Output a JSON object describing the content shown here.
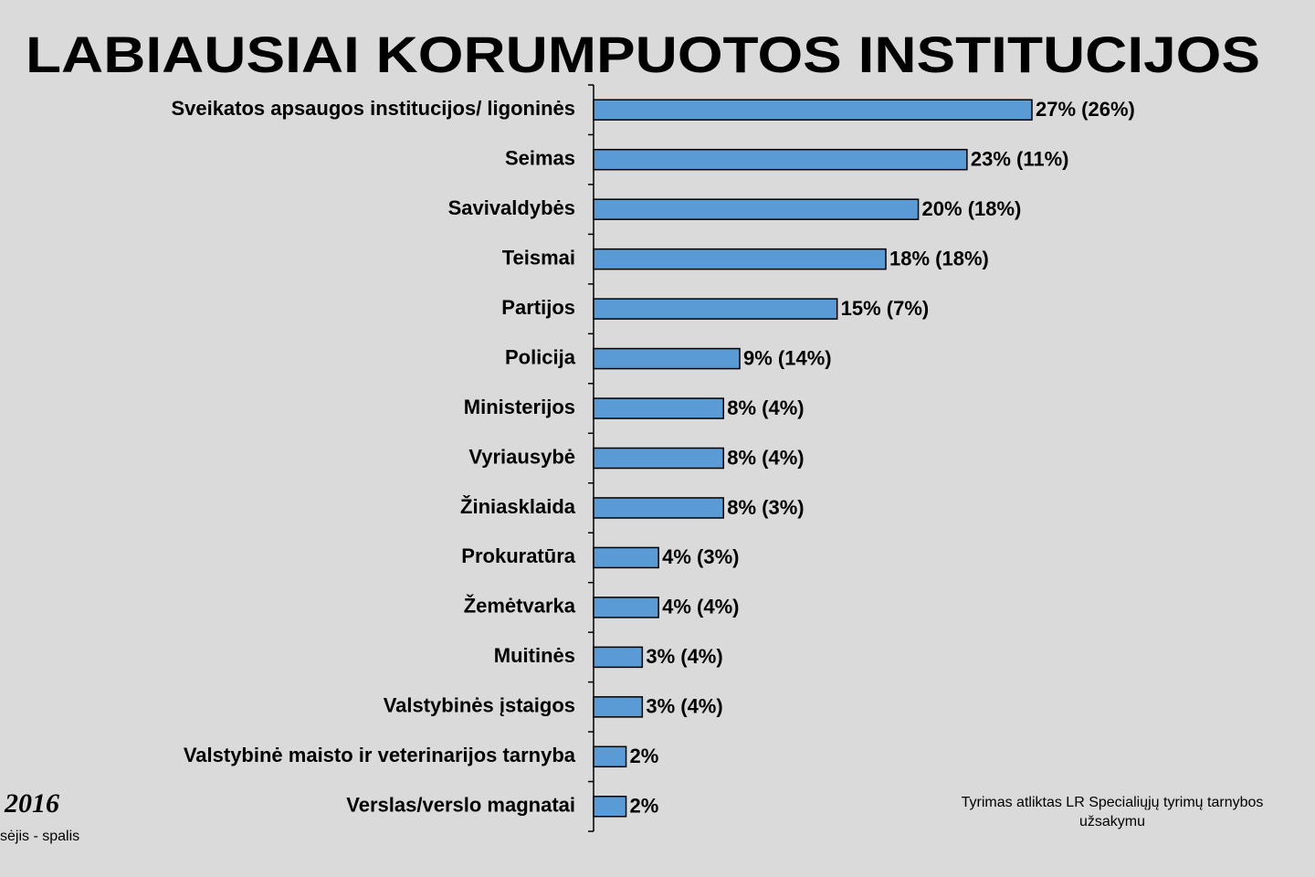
{
  "chart_data": {
    "type": "barh",
    "title": "LABIAUSIAI KORUMPUOTOS INSTITUCIJOS",
    "categories": [
      "Sveikatos apsaugos institucijos/ ligoninės",
      "Seimas",
      "Savivaldybės",
      "Teismai",
      "Partijos",
      "Policija",
      "Ministerijos",
      "Vyriausybė",
      "Žiniasklaida",
      "Prokuratūra",
      "Žemėtvarka",
      "Muitinės",
      "Valstybinės įstaigos",
      "Valstybinė maisto ir veterinarijos tarnyba",
      "Verslas/verslo magnatai"
    ],
    "values": [
      27,
      23,
      20,
      18,
      15,
      9,
      8,
      8,
      8,
      4,
      4,
      3,
      3,
      2,
      2
    ],
    "value_labels": [
      "27% (26%)",
      "23% (11%)",
      "20% (18%)",
      "18% (18%)",
      "15% (7%)",
      "9% (14%)",
      "8% (4%)",
      "8% (4%)",
      "8% (3%)",
      "4% (3%)",
      "4% (4%)",
      "3% (4%)",
      "3% (4%)",
      "2%",
      "2%"
    ],
    "color": "#5b9bd5",
    "annotations": {
      "year": "2016",
      "period": "sėjis - spalis",
      "source": [
        "Tyrimas atliktas LR Specialiųjų tyrimų tarnybos",
        "užsakymu"
      ]
    }
  }
}
